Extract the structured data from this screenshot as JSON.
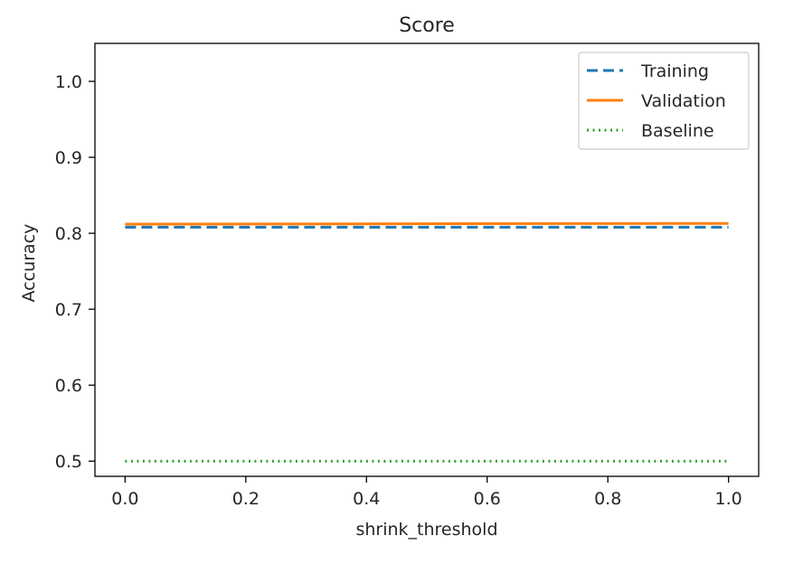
{
  "chart_data": {
    "type": "line",
    "title": "Score",
    "xlabel": "shrink_threshold",
    "ylabel": "Accuracy",
    "xlim": [
      -0.05,
      1.05
    ],
    "ylim": [
      0.48,
      1.05
    ],
    "xticks": [
      0.0,
      0.2,
      0.4,
      0.6,
      0.8,
      1.0
    ],
    "xtick_labels": [
      "0.0",
      "0.2",
      "0.4",
      "0.6",
      "0.8",
      "1.0"
    ],
    "yticks": [
      0.5,
      0.6,
      0.7,
      0.8,
      0.9,
      1.0
    ],
    "ytick_labels": [
      "0.5",
      "0.6",
      "0.7",
      "0.8",
      "0.9",
      "1.0"
    ],
    "grid": false,
    "legend_position": "top-right",
    "series": [
      {
        "name": "Training",
        "x": [
          0.0,
          1.0
        ],
        "y": [
          0.808,
          0.808
        ],
        "color": "#1f77b4",
        "style": "dashed"
      },
      {
        "name": "Validation",
        "x": [
          0.0,
          1.0
        ],
        "y": [
          0.812,
          0.813
        ],
        "color": "#ff7f0e",
        "style": "solid"
      },
      {
        "name": "Baseline",
        "x": [
          0.0,
          1.0
        ],
        "y": [
          0.5,
          0.5
        ],
        "color": "#2ca02c",
        "style": "dotted"
      }
    ]
  }
}
